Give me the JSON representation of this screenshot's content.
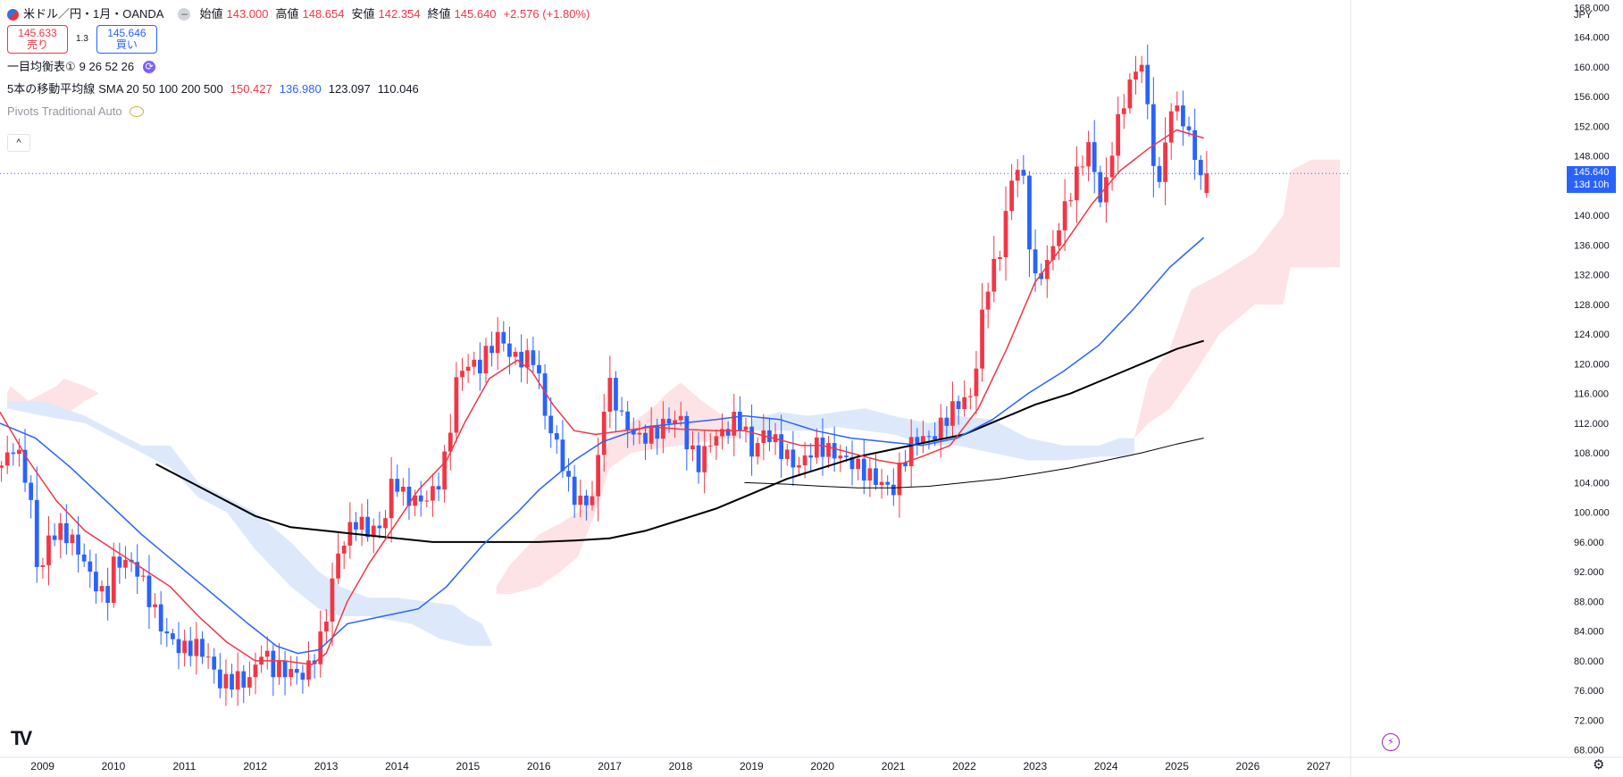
{
  "header": {
    "symbol": "米ドル／円・1月・OANDA",
    "open_label": "始値",
    "open": "143.000",
    "high_label": "高値",
    "high": "148.654",
    "low_label": "安値",
    "low": "142.354",
    "close_label": "終値",
    "close": "145.640",
    "change": "+2.576 (+1.80%)",
    "dot": "–"
  },
  "trade": {
    "sell_price": "145.633",
    "sell_label": "売り",
    "spread": "1.3",
    "buy_price": "145.646",
    "buy_label": "買い"
  },
  "indicators": {
    "ichimoku_name": "一目均衡表①",
    "ichimoku_params": "9 26 52 26",
    "ma_name": "5本の移動平均線",
    "ma_type": "SMA 20 50 100 200 500",
    "ma_vals": [
      "150.427",
      "136.980",
      "123.097",
      "110.046"
    ],
    "pivots": "Pivots Traditional Auto",
    "sync_glyph": "⟳",
    "collapse_glyph": "^"
  },
  "scale": {
    "currency": "JPY",
    "last_price": "145.640",
    "countdown": "13d 10h",
    "gear_glyph": "⚙"
  },
  "logo_text": "TV",
  "bolt_glyph": "⚡",
  "colors": {
    "up": "#f23645",
    "down": "#2962ff",
    "sma20": "#f23645",
    "sma50": "#2962ff",
    "sma100": "#000000",
    "sma200": "#000000",
    "kumo_bull": "#fde3e5",
    "kumo_bear": "#dde9fb"
  },
  "chart_data": {
    "type": "candlestick",
    "timeframe": "1M",
    "ylim": [
      67,
      169
    ],
    "xlim": [
      2008.4,
      2027.45
    ],
    "y_ticks": [
      "68.000",
      "72.000",
      "76.000",
      "80.000",
      "84.000",
      "88.000",
      "92.000",
      "96.000",
      "100.000",
      "104.000",
      "108.000",
      "112.000",
      "116.000",
      "120.000",
      "124.000",
      "128.000",
      "132.000",
      "136.000",
      "140.000",
      "144.000",
      "148.000",
      "152.000",
      "156.000",
      "160.000",
      "164.000",
      "168.000"
    ],
    "x_ticks": [
      "2009",
      "2010",
      "2011",
      "2012",
      "2013",
      "2014",
      "2015",
      "2016",
      "2017",
      "2018",
      "2019",
      "2020",
      "2021",
      "2022",
      "2023",
      "2024",
      "2025",
      "2026",
      "2027"
    ],
    "close_anchors": [
      [
        2008.4,
        106
      ],
      [
        2008.6,
        109
      ],
      [
        2008.8,
        104
      ],
      [
        2008.95,
        90.5
      ],
      [
        2009.1,
        97
      ],
      [
        2009.3,
        97.5
      ],
      [
        2009.5,
        95
      ],
      [
        2009.7,
        91
      ],
      [
        2009.9,
        88
      ],
      [
        2010.0,
        93
      ],
      [
        2010.2,
        93.5
      ],
      [
        2010.35,
        92
      ],
      [
        2010.5,
        88.5
      ],
      [
        2010.7,
        84
      ],
      [
        2010.95,
        81.5
      ],
      [
        2011.15,
        82
      ],
      [
        2011.3,
        81
      ],
      [
        2011.5,
        77
      ],
      [
        2011.75,
        77.5
      ],
      [
        2011.9,
        77
      ],
      [
        2012.1,
        81.5
      ],
      [
        2012.25,
        79
      ],
      [
        2012.5,
        78.5
      ],
      [
        2012.7,
        78
      ],
      [
        2012.9,
        82
      ],
      [
        2013.0,
        86
      ],
      [
        2013.15,
        94
      ],
      [
        2013.4,
        99
      ],
      [
        2013.6,
        97.5
      ],
      [
        2013.8,
        98
      ],
      [
        2013.95,
        105
      ],
      [
        2014.1,
        102
      ],
      [
        2014.35,
        101.5
      ],
      [
        2014.55,
        103
      ],
      [
        2014.7,
        108
      ],
      [
        2014.85,
        118.5
      ],
      [
        2015.0,
        120
      ],
      [
        2015.15,
        119.5
      ],
      [
        2015.3,
        122
      ],
      [
        2015.45,
        124
      ],
      [
        2015.6,
        121
      ],
      [
        2015.8,
        120.5
      ],
      [
        2015.95,
        121
      ],
      [
        2016.1,
        112.5
      ],
      [
        2016.3,
        108
      ],
      [
        2016.45,
        102.5
      ],
      [
        2016.65,
        101
      ],
      [
        2016.8,
        103
      ],
      [
        2016.9,
        114
      ],
      [
        2017.0,
        117
      ],
      [
        2017.2,
        112
      ],
      [
        2017.4,
        110
      ],
      [
        2017.6,
        110.5
      ],
      [
        2017.85,
        112.5
      ],
      [
        2018.0,
        112.5
      ],
      [
        2018.1,
        109
      ],
      [
        2018.25,
        106.5
      ],
      [
        2018.45,
        110
      ],
      [
        2018.65,
        111
      ],
      [
        2018.8,
        113
      ],
      [
        2018.95,
        110
      ],
      [
        2019.0,
        108
      ],
      [
        2019.2,
        111
      ],
      [
        2019.45,
        108
      ],
      [
        2019.65,
        106
      ],
      [
        2019.9,
        109
      ],
      [
        2020.05,
        108.5
      ],
      [
        2020.25,
        107.5
      ],
      [
        2020.45,
        106.5
      ],
      [
        2020.65,
        105
      ],
      [
        2020.9,
        103.5
      ],
      [
        2021.0,
        103
      ],
      [
        2021.1,
        106
      ],
      [
        2021.3,
        110
      ],
      [
        2021.55,
        110
      ],
      [
        2021.8,
        113.5
      ],
      [
        2021.95,
        115
      ],
      [
        2022.1,
        115.5
      ],
      [
        2022.2,
        122
      ],
      [
        2022.3,
        130
      ],
      [
        2022.5,
        135
      ],
      [
        2022.65,
        144
      ],
      [
        2022.8,
        148
      ],
      [
        2022.9,
        138
      ],
      [
        2023.0,
        131
      ],
      [
        2023.2,
        134
      ],
      [
        2023.35,
        139
      ],
      [
        2023.55,
        144.5
      ],
      [
        2023.75,
        149.5
      ],
      [
        2023.95,
        141
      ],
      [
        2024.1,
        150
      ],
      [
        2024.3,
        157
      ],
      [
        2024.5,
        161
      ],
      [
        2024.65,
        149
      ],
      [
        2024.75,
        143
      ],
      [
        2024.85,
        152
      ],
      [
        2025.0,
        155
      ],
      [
        2025.1,
        152
      ],
      [
        2025.25,
        149
      ],
      [
        2025.3,
        143
      ],
      [
        2025.38,
        145.64
      ]
    ],
    "last_candle": {
      "open": 143.0,
      "high": 148.654,
      "low": 142.354,
      "close": 145.64
    },
    "sma20": [
      [
        2008.4,
        113.5
      ],
      [
        2008.8,
        107
      ],
      [
        2009.2,
        101.5
      ],
      [
        2009.6,
        97.5
      ],
      [
        2010.0,
        95
      ],
      [
        2010.4,
        92.5
      ],
      [
        2010.8,
        90
      ],
      [
        2011.2,
        86
      ],
      [
        2011.6,
        82.5
      ],
      [
        2012.0,
        80
      ],
      [
        2012.4,
        80
      ],
      [
        2012.8,
        79.5
      ],
      [
        2013.0,
        81
      ],
      [
        2013.3,
        88
      ],
      [
        2013.6,
        93
      ],
      [
        2013.95,
        98
      ],
      [
        2014.3,
        103
      ],
      [
        2014.7,
        107
      ],
      [
        2014.95,
        112
      ],
      [
        2015.3,
        118
      ],
      [
        2015.7,
        120.5
      ],
      [
        2015.9,
        119
      ],
      [
        2016.2,
        114.5
      ],
      [
        2016.5,
        111
      ],
      [
        2016.8,
        110.5
      ],
      [
        2017.2,
        111
      ],
      [
        2017.6,
        111.5
      ],
      [
        2018.0,
        111.2
      ],
      [
        2018.5,
        111
      ],
      [
        2018.9,
        111
      ],
      [
        2019.3,
        110
      ],
      [
        2019.7,
        109
      ],
      [
        2020.0,
        109
      ],
      [
        2020.4,
        108
      ],
      [
        2020.8,
        107
      ],
      [
        2021.1,
        106.5
      ],
      [
        2021.4,
        107.5
      ],
      [
        2021.8,
        109
      ],
      [
        2022.2,
        114
      ],
      [
        2022.6,
        122
      ],
      [
        2023.0,
        131
      ],
      [
        2023.4,
        136
      ],
      [
        2023.8,
        141.5
      ],
      [
        2024.2,
        146
      ],
      [
        2024.6,
        149
      ],
      [
        2025.0,
        151.5
      ],
      [
        2025.38,
        150.4
      ]
    ],
    "sma50": [
      [
        2008.4,
        112
      ],
      [
        2008.9,
        110
      ],
      [
        2009.4,
        106
      ],
      [
        2009.9,
        101.5
      ],
      [
        2010.4,
        97
      ],
      [
        2010.9,
        93
      ],
      [
        2011.4,
        89
      ],
      [
        2011.9,
        85
      ],
      [
        2012.3,
        82
      ],
      [
        2012.6,
        81
      ],
      [
        2012.9,
        81.5
      ],
      [
        2013.3,
        85
      ],
      [
        2013.8,
        86
      ],
      [
        2014.3,
        87
      ],
      [
        2014.7,
        90
      ],
      [
        2015.2,
        95.5
      ],
      [
        2015.7,
        100
      ],
      [
        2016.0,
        103
      ],
      [
        2016.5,
        107
      ],
      [
        2016.9,
        109.5
      ],
      [
        2017.5,
        111.5
      ],
      [
        2018.0,
        112
      ],
      [
        2018.5,
        112.5
      ],
      [
        2018.9,
        113
      ],
      [
        2019.4,
        112.5
      ],
      [
        2019.9,
        111
      ],
      [
        2020.4,
        110
      ],
      [
        2020.9,
        109.5
      ],
      [
        2021.4,
        109
      ],
      [
        2021.9,
        110
      ],
      [
        2022.4,
        112.5
      ],
      [
        2022.9,
        116
      ],
      [
        2023.4,
        119
      ],
      [
        2023.9,
        122.5
      ],
      [
        2024.4,
        127.5
      ],
      [
        2024.9,
        133
      ],
      [
        2025.38,
        137.0
      ]
    ],
    "sma100": [
      [
        2010.6,
        106.5
      ],
      [
        2011.0,
        104.5
      ],
      [
        2011.5,
        102
      ],
      [
        2012.0,
        99.5
      ],
      [
        2012.5,
        98
      ],
      [
        2013.0,
        97.5
      ],
      [
        2013.5,
        97
      ],
      [
        2014.0,
        96.5
      ],
      [
        2014.5,
        96
      ],
      [
        2015.0,
        96
      ],
      [
        2015.5,
        96
      ],
      [
        2016.0,
        96
      ],
      [
        2016.5,
        96.2
      ],
      [
        2017.0,
        96.5
      ],
      [
        2017.5,
        97.5
      ],
      [
        2018.0,
        99
      ],
      [
        2018.5,
        100.5
      ],
      [
        2019.0,
        102.5
      ],
      [
        2019.5,
        104.5
      ],
      [
        2020.0,
        106
      ],
      [
        2020.5,
        107.5
      ],
      [
        2021.0,
        108.5
      ],
      [
        2021.5,
        109.5
      ],
      [
        2022.0,
        110.5
      ],
      [
        2022.5,
        112.5
      ],
      [
        2023.0,
        114.5
      ],
      [
        2023.5,
        116
      ],
      [
        2024.0,
        118
      ],
      [
        2024.5,
        120
      ],
      [
        2025.0,
        122
      ],
      [
        2025.38,
        123.1
      ]
    ],
    "sma200": [
      [
        2018.9,
        104
      ],
      [
        2019.5,
        103.8
      ],
      [
        2020.0,
        103.5
      ],
      [
        2020.5,
        103.3
      ],
      [
        2021.0,
        103.3
      ],
      [
        2021.5,
        103.5
      ],
      [
        2022.0,
        104
      ],
      [
        2022.5,
        104.5
      ],
      [
        2023.0,
        105.2
      ],
      [
        2023.5,
        106
      ],
      [
        2024.0,
        107
      ],
      [
        2024.5,
        108
      ],
      [
        2025.0,
        109.2
      ],
      [
        2025.38,
        110.0
      ]
    ],
    "kumo_bull": [
      [
        [
          2008.5,
          116
        ],
        [
          2008.55,
          117
        ],
        [
          2008.8,
          115
        ],
        [
          2009.0,
          116
        ],
        [
          2009.2,
          117
        ],
        [
          2009.3,
          118
        ],
        [
          2009.6,
          117
        ],
        [
          2009.8,
          116
        ],
        [
          2009.8,
          116
        ],
        [
          2009.6,
          115
        ],
        [
          2009.3,
          113
        ],
        [
          2009.0,
          114
        ],
        [
          2008.8,
          114
        ],
        [
          2008.5,
          115
        ]
      ],
      [
        [
          2015.4,
          90
        ],
        [
          2015.6,
          93
        ],
        [
          2015.8,
          95
        ],
        [
          2016.0,
          97
        ],
        [
          2016.3,
          98.5
        ],
        [
          2016.55,
          100
        ],
        [
          2016.8,
          103
        ],
        [
          2017.0,
          110
        ],
        [
          2017.3,
          112
        ],
        [
          2017.6,
          114
        ],
        [
          2017.8,
          116
        ],
        [
          2018.0,
          117.5
        ],
        [
          2018.3,
          115
        ],
        [
          2018.6,
          113
        ],
        [
          2018.9,
          110
        ],
        [
          2018.9,
          110
        ],
        [
          2018.6,
          110
        ],
        [
          2018.3,
          109.5
        ],
        [
          2018.0,
          109
        ],
        [
          2017.6,
          108.5
        ],
        [
          2017.3,
          108
        ],
        [
          2017.0,
          106
        ],
        [
          2016.8,
          100
        ],
        [
          2016.55,
          94
        ],
        [
          2016.3,
          92
        ],
        [
          2016.0,
          90
        ],
        [
          2015.6,
          89
        ],
        [
          2015.4,
          89
        ]
      ],
      [
        [
          2024.4,
          110
        ],
        [
          2024.6,
          118
        ],
        [
          2024.9,
          122
        ],
        [
          2025.2,
          130
        ],
        [
          2025.6,
          132
        ],
        [
          2026.1,
          135
        ],
        [
          2026.5,
          140
        ],
        [
          2026.6,
          146
        ],
        [
          2026.9,
          147.5
        ],
        [
          2027.3,
          147.5
        ],
        [
          2027.3,
          133
        ],
        [
          2026.9,
          133
        ],
        [
          2026.6,
          133
        ],
        [
          2026.5,
          128
        ],
        [
          2026.1,
          128
        ],
        [
          2025.6,
          124
        ],
        [
          2025.2,
          118
        ],
        [
          2024.9,
          114
        ],
        [
          2024.6,
          112
        ],
        [
          2024.4,
          110
        ]
      ]
    ],
    "kumo_bear": [
      [
        [
          2008.5,
          115
        ],
        [
          2009.0,
          115
        ],
        [
          2009.6,
          113
        ],
        [
          2010.0,
          111
        ],
        [
          2010.4,
          109
        ],
        [
          2010.8,
          109
        ],
        [
          2011.2,
          104
        ],
        [
          2011.6,
          102
        ],
        [
          2012.0,
          100
        ],
        [
          2012.5,
          96
        ],
        [
          2012.9,
          92
        ],
        [
          2013.2,
          90
        ],
        [
          2013.6,
          88.5
        ],
        [
          2014.0,
          88.5
        ],
        [
          2014.4,
          88
        ],
        [
          2014.8,
          87.5
        ],
        [
          2015.0,
          86
        ],
        [
          2015.2,
          85
        ],
        [
          2015.35,
          82
        ],
        [
          2015.35,
          82
        ],
        [
          2015.0,
          82
        ],
        [
          2014.6,
          83
        ],
        [
          2014.2,
          85
        ],
        [
          2013.6,
          86
        ],
        [
          2013.2,
          86
        ],
        [
          2012.9,
          87
        ],
        [
          2012.5,
          90
        ],
        [
          2012.0,
          95
        ],
        [
          2011.6,
          100
        ],
        [
          2011.2,
          102
        ],
        [
          2010.8,
          106
        ],
        [
          2010.4,
          108
        ],
        [
          2010.0,
          110
        ],
        [
          2009.6,
          112
        ],
        [
          2009.0,
          113
        ],
        [
          2008.5,
          114
        ]
      ],
      [
        [
          2019.0,
          112.5
        ],
        [
          2019.4,
          113.5
        ],
        [
          2019.8,
          113
        ],
        [
          2020.2,
          113.5
        ],
        [
          2020.6,
          114
        ],
        [
          2021.0,
          113
        ],
        [
          2021.5,
          112
        ],
        [
          2021.9,
          113
        ],
        [
          2022.4,
          112.5
        ],
        [
          2022.9,
          110
        ],
        [
          2023.4,
          109
        ],
        [
          2023.9,
          109
        ],
        [
          2024.2,
          110
        ],
        [
          2024.4,
          110
        ],
        [
          2024.4,
          108
        ],
        [
          2024.2,
          107.5
        ],
        [
          2023.9,
          107.5
        ],
        [
          2023.4,
          107
        ],
        [
          2022.9,
          107
        ],
        [
          2022.4,
          108
        ],
        [
          2021.9,
          109
        ],
        [
          2021.5,
          109
        ],
        [
          2021.0,
          110.5
        ],
        [
          2020.6,
          111
        ],
        [
          2020.2,
          111.5
        ],
        [
          2019.8,
          111
        ],
        [
          2019.4,
          111
        ],
        [
          2019.0,
          111
        ]
      ]
    ]
  }
}
